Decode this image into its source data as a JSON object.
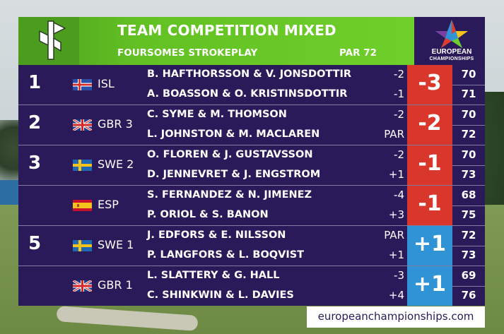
{
  "header": {
    "title": "TEAM COMPETITION MIXED",
    "subtitle": "FOURSOMES STROKEPLAY",
    "par": "PAR 72",
    "logo_line1": "EUROPEAN",
    "logo_line2": "CHAMPIONSHIPS"
  },
  "teams": [
    {
      "rank": "1",
      "flag": "iceland-flag-icon",
      "country": "ISL",
      "pairs": [
        {
          "names": "B. HAFTHORSSON & V. JONSDOTTIR",
          "score": "-2",
          "round": "70"
        },
        {
          "names": "A. BOASSON & O. KRISTINSDOTTIR",
          "score": "-1",
          "round": "71"
        }
      ],
      "total": "-3",
      "total_color": "#d9372b"
    },
    {
      "rank": "2",
      "flag": "uk-flag-icon",
      "country": "GBR 3",
      "pairs": [
        {
          "names": "C. SYME & M. THOMSON",
          "score": "-2",
          "round": "70"
        },
        {
          "names": "L. JOHNSTON & M. MACLAREN",
          "score": "PAR",
          "round": "72"
        }
      ],
      "total": "-2",
      "total_color": "#d9372b"
    },
    {
      "rank": "3",
      "flag": "sweden-flag-icon",
      "country": "SWE 2",
      "pairs": [
        {
          "names": "O. FLOREN & J. GUSTAVSSON",
          "score": "-2",
          "round": "70"
        },
        {
          "names": "D. JENNEVRET & J. ENGSTROM",
          "score": "+1",
          "round": "73"
        }
      ],
      "total": "-1",
      "total_color": "#d9372b"
    },
    {
      "rank": "",
      "flag": "spain-flag-icon",
      "country": "ESP",
      "pairs": [
        {
          "names": "S. FERNANDEZ & N. JIMENEZ",
          "score": "-4",
          "round": "68"
        },
        {
          "names": "P. ORIOL & S. BANON",
          "score": "+3",
          "round": "75"
        }
      ],
      "total": "-1",
      "total_color": "#d9372b"
    },
    {
      "rank": "5",
      "flag": "sweden-flag-icon",
      "country": "SWE 1",
      "pairs": [
        {
          "names": "J. EDFORS & E. NILSSON",
          "score": "PAR",
          "round": "72"
        },
        {
          "names": "P. LANGFORS & L. BOQVIST",
          "score": "+1",
          "round": "73"
        }
      ],
      "total": "+1",
      "total_color": "#2f93d6"
    },
    {
      "rank": "",
      "flag": "uk-flag-icon",
      "country": "GBR 1",
      "pairs": [
        {
          "names": "L. SLATTERY & G. HALL",
          "score": "-3",
          "round": "69"
        },
        {
          "names": "C. SHINKWIN & L. DAVIES",
          "score": "+4",
          "round": "76"
        }
      ],
      "total": "+1",
      "total_color": "#2f93d6"
    }
  ],
  "footer": {
    "url": "europeanchampionships.com"
  },
  "colors": {
    "panel": "#2a1a59",
    "header_green": "#62c123",
    "negative_total": "#d9372b",
    "positive_total": "#2f93d6"
  }
}
